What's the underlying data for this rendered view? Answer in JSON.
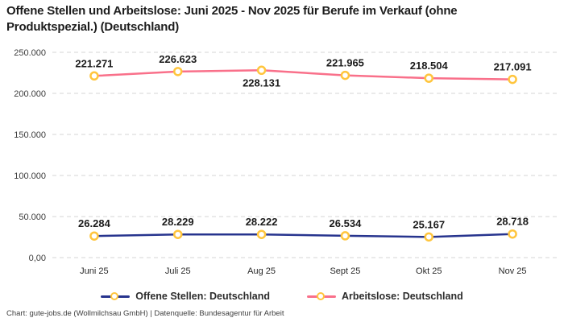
{
  "title": "Offene Stellen und Arbeitslose: Juni 2025 - Nov 2025 für Berufe im Verkauf (ohne Produktspezial.) (Deutschland)",
  "footer": "Chart: gute-jobs.de (Wollmilchsau GmbH) | Datenquelle: Bundesagentur für Arbeit",
  "colors": {
    "background": "#ffffff",
    "gridline": "#d5d5d5",
    "title_text": "#1d1d1d",
    "axis_text": "#3c3c3c",
    "data_label_text": "#1b1b1b",
    "marker_fill": "#ffffff",
    "marker_stroke": "#FFC53D",
    "series_blue": "#27348E",
    "series_pink": "#F9708A"
  },
  "chart_data": {
    "type": "line",
    "categories": [
      "Juni 25",
      "Juli 25",
      "Aug 25",
      "Sept 25",
      "Okt 25",
      "Nov 25"
    ],
    "series": [
      {
        "name": "Offene Stellen: Deutschland",
        "color": "#27348E",
        "values": [
          26284,
          28229,
          28222,
          26534,
          25167,
          28718
        ],
        "labels": [
          "26.284",
          "28.229",
          "28.222",
          "26.534",
          "25.167",
          "28.718"
        ],
        "label_below": [
          false,
          false,
          false,
          false,
          false,
          false
        ]
      },
      {
        "name": "Arbeitslose: Deutschland",
        "color": "#F9708A",
        "values": [
          221271,
          226623,
          228131,
          221965,
          218504,
          217091
        ],
        "labels": [
          "221.271",
          "226.623",
          "228.131",
          "221.965",
          "218.504",
          "217.091"
        ],
        "label_below": [
          false,
          false,
          true,
          false,
          false,
          false
        ]
      }
    ],
    "y_ticks": [
      {
        "value": 0,
        "label": "0,00"
      },
      {
        "value": 50000,
        "label": "50.000"
      },
      {
        "value": 100000,
        "label": "100.000"
      },
      {
        "value": 150000,
        "label": "150.000"
      },
      {
        "value": 200000,
        "label": "200.000"
      },
      {
        "value": 250000,
        "label": "250.000"
      }
    ],
    "ylim": [
      0,
      250000
    ],
    "xlabel": "",
    "ylabel": "",
    "grid": "dashed-horizontal",
    "legend_position": "bottom",
    "marker": {
      "shape": "circle",
      "fill": "#ffffff",
      "stroke": "#FFC53D"
    }
  }
}
